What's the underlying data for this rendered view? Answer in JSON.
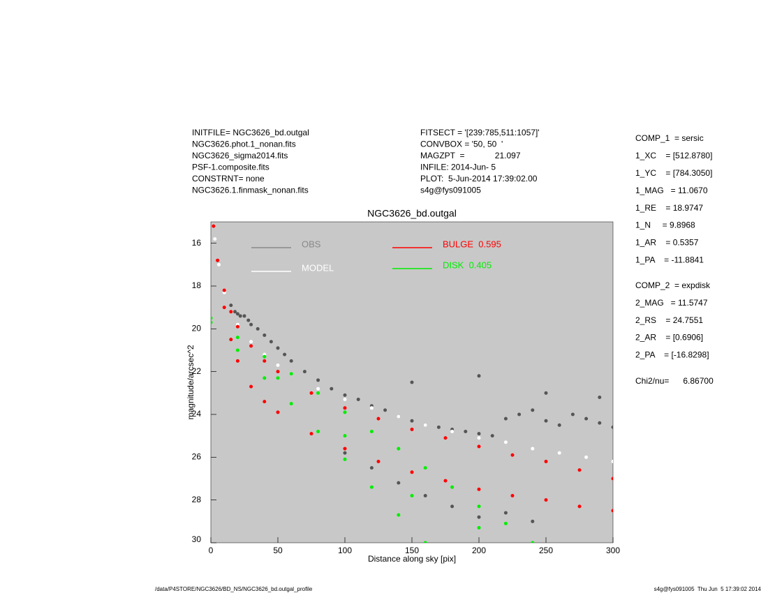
{
  "header_left": [
    "INITFILE= NGC3626_bd.outgal",
    "NGC3626.phot.1_nonan.fits",
    "NGC3626_sigma2014.fits",
    "PSF-1.composite.fits",
    "CONSTRNT= none",
    "NGC3626.1.finmask_nonan.fits"
  ],
  "header_middle": [
    "FITSECT = '[239:785,511:1057]'",
    "CONVBOX = '50, 50  '",
    "MAGZPT  =             21.097",
    "INFILE: 2014-Jun- 5",
    "PLOT:  5-Jun-2014 17:39:02.00",
    "s4g@fys091005"
  ],
  "params_bulge": [
    "COMP_1  = sersic",
    "1_XC    = [512.8780]",
    "1_YC    = [784.3050]",
    "1_MAG   = 11.0670",
    "1_RE    = 18.9747",
    "1_N     = 9.8968",
    "1_AR    = 0.5357",
    "1_PA    = -11.8841"
  ],
  "params_disk": [
    "COMP_2  = expdisk",
    "2_MAG   = 11.5747",
    "2_RS    = 24.7551",
    "2_AR    = [0.6906]",
    "2_PA    = [-16.8298]"
  ],
  "chi2": "Chi2/nu=      6.86700",
  "footer_left": "/data/P4STORE/NGC3626/BD_NS/NGC3626_bd.outgal_profile",
  "footer_right": "s4g@fys091005  Thu Jun  5 17:39:02 2014",
  "chart_data": {
    "type": "scatter",
    "title": "NGC3626_bd.outgal",
    "x_label": "Distance along sky [pix]",
    "y_label": "magnitude/arcsec^2",
    "xlim": [
      0,
      300
    ],
    "xticks": [
      0,
      50,
      100,
      150,
      200,
      250,
      300
    ],
    "ylim": [
      30,
      15
    ],
    "yticks": [
      16,
      18,
      20,
      22,
      24,
      26,
      28,
      30
    ],
    "background": "#c8c8c8",
    "series": [
      {
        "name": "OBS",
        "color": "#555555",
        "legend_color": "#888888",
        "x": [
          15,
          18,
          20,
          22,
          25,
          28,
          30,
          35,
          40,
          45,
          50,
          55,
          60,
          70,
          80,
          90,
          100,
          110,
          120,
          130,
          140,
          150,
          160,
          170,
          180,
          190,
          200,
          210,
          220,
          230,
          240,
          250,
          260,
          270,
          280,
          290,
          300,
          100,
          120,
          140,
          160,
          180,
          200,
          220,
          240,
          150,
          200,
          250,
          290
        ],
        "values": [
          18.9,
          19.2,
          19.3,
          19.4,
          19.4,
          19.6,
          19.8,
          20.0,
          20.3,
          20.6,
          20.9,
          21.2,
          21.5,
          22.0,
          22.4,
          22.8,
          23.1,
          23.3,
          23.6,
          23.8,
          24.1,
          24.3,
          24.5,
          24.6,
          24.7,
          24.8,
          24.9,
          25.0,
          24.2,
          24.0,
          23.8,
          24.3,
          24.5,
          24.0,
          24.2,
          24.4,
          24.6,
          25.8,
          26.5,
          27.2,
          27.8,
          28.3,
          28.8,
          28.6,
          29.0,
          22.5,
          22.2,
          23.0,
          23.2
        ]
      },
      {
        "name": "MODEL",
        "color": "#ffffff",
        "legend_color": "#ffffff",
        "x": [
          3,
          6,
          10,
          15,
          20,
          30,
          40,
          50,
          60,
          80,
          100,
          120,
          140,
          160,
          180,
          200,
          220,
          240,
          260,
          280,
          300
        ],
        "values": [
          15.8,
          17.0,
          18.3,
          19.2,
          19.8,
          20.6,
          21.2,
          21.7,
          22.1,
          22.8,
          23.3,
          23.7,
          24.1,
          24.5,
          24.8,
          25.1,
          25.3,
          25.6,
          25.8,
          26.0,
          26.2
        ]
      },
      {
        "name": "BULGE  0.595",
        "color": "#ff0000",
        "legend_color": "#ff0000",
        "x": [
          2,
          5,
          10,
          15,
          20,
          30,
          40,
          50,
          75,
          100,
          125,
          150,
          175,
          200,
          225,
          250,
          275,
          300,
          10,
          15,
          20,
          30,
          40,
          50,
          75,
          100,
          125,
          150,
          175,
          200,
          225,
          250,
          275,
          300
        ],
        "values": [
          15.2,
          16.8,
          18.2,
          19.2,
          19.9,
          20.8,
          21.5,
          22.0,
          23.0,
          23.7,
          24.2,
          24.7,
          25.1,
          25.5,
          25.9,
          26.2,
          26.6,
          27.0,
          19.0,
          20.5,
          21.5,
          22.7,
          23.4,
          23.9,
          24.9,
          25.6,
          26.2,
          26.7,
          27.1,
          27.5,
          27.8,
          28.0,
          28.3,
          28.5
        ]
      },
      {
        "name": "DISK  0.405",
        "color": "#00ee00",
        "legend_color": "#00ee00",
        "x": [
          0,
          20,
          40,
          60,
          80,
          100,
          120,
          140,
          160,
          180,
          200,
          220,
          240,
          0,
          20,
          40,
          60,
          80,
          100,
          120,
          140,
          160,
          50,
          100,
          150,
          200
        ],
        "values": [
          19.5,
          20.4,
          21.3,
          22.1,
          23.0,
          23.9,
          24.8,
          25.6,
          26.5,
          27.4,
          28.3,
          29.1,
          30.0,
          19.7,
          21.0,
          22.3,
          23.5,
          24.8,
          26.1,
          27.4,
          28.7,
          30.0,
          22.3,
          25.0,
          27.8,
          29.3
        ]
      }
    ]
  }
}
